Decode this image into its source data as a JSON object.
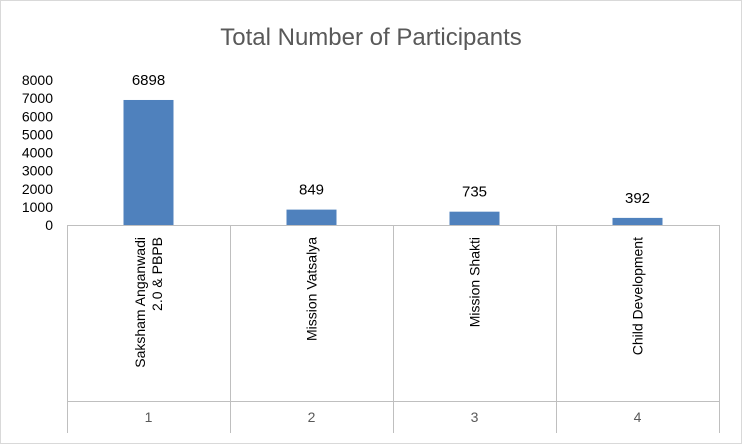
{
  "chart_data": {
    "type": "bar",
    "title": "Total Number of Participants",
    "categories": [
      {
        "lines": [
          "Saksham Anganwadi",
          "2.0 & PBPB"
        ],
        "index": "1"
      },
      {
        "lines": [
          "Mission Vatsalya"
        ],
        "index": "2"
      },
      {
        "lines": [
          "Mission Shakti"
        ],
        "index": "3"
      },
      {
        "lines": [
          "Child Development"
        ],
        "index": "4"
      }
    ],
    "values": [
      6898,
      849,
      735,
      392
    ],
    "data_labels": [
      "6898",
      "849",
      "735",
      "392"
    ],
    "ylim": [
      0,
      8000
    ],
    "yticks": [
      "0",
      "1000",
      "2000",
      "3000",
      "4000",
      "5000",
      "6000",
      "7000",
      "8000"
    ],
    "xlabel": "",
    "ylabel": "",
    "grid": false,
    "legend": "none",
    "bar_color": "#4f81bd",
    "axis_color": "#bfbfbf"
  }
}
